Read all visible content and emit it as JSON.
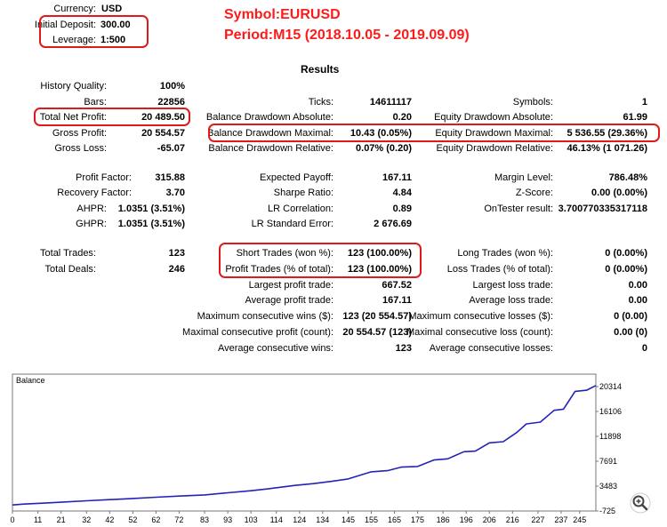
{
  "header": {
    "currency_label": "Currency:",
    "currency_value": "USD",
    "deposit_label": "Initial Deposit:",
    "deposit_value": "300.00",
    "leverage_label": "Leverage:",
    "leverage_value": "1:500",
    "symbol_annotation": "Symbol:EURUSD",
    "period_annotation": "Period:M15 (2018.10.05 - 2019.09.09)",
    "results_title": "Results"
  },
  "stats": {
    "history_quality": {
      "label": "History Quality:",
      "value": "100%"
    },
    "bars": {
      "label": "Bars:",
      "value": "22856"
    },
    "ticks": {
      "label": "Ticks:",
      "value": "14611117"
    },
    "symbols": {
      "label": "Symbols:",
      "value": "1"
    },
    "total_net_profit": {
      "label": "Total Net Profit:",
      "value": "20 489.50"
    },
    "balance_dd_abs": {
      "label": "Balance Drawdown Absolute:",
      "value": "0.20"
    },
    "equity_dd_abs": {
      "label": "Equity Drawdown Absolute:",
      "value": "61.99"
    },
    "gross_profit": {
      "label": "Gross Profit:",
      "value": "20 554.57"
    },
    "balance_dd_max": {
      "label": "Balance Drawdown Maximal:",
      "value": "10.43 (0.05%)"
    },
    "equity_dd_max": {
      "label": "Equity Drawdown Maximal:",
      "value": "5 536.55 (29.36%)"
    },
    "gross_loss": {
      "label": "Gross Loss:",
      "value": "-65.07"
    },
    "balance_dd_rel": {
      "label": "Balance Drawdown Relative:",
      "value": "0.07% (0.20)"
    },
    "equity_dd_rel": {
      "label": "Equity Drawdown Relative:",
      "value": "46.13% (1 071.26)"
    },
    "profit_factor": {
      "label": "Profit Factor:",
      "value": "315.88"
    },
    "expected_payoff": {
      "label": "Expected Payoff:",
      "value": "167.11"
    },
    "margin_level": {
      "label": "Margin Level:",
      "value": "786.48%"
    },
    "recovery_factor": {
      "label": "Recovery Factor:",
      "value": "3.70"
    },
    "sharpe_ratio": {
      "label": "Sharpe Ratio:",
      "value": "4.84"
    },
    "z_score": {
      "label": "Z-Score:",
      "value": "0.00 (0.00%)"
    },
    "ahpr": {
      "label": "AHPR:",
      "value": "1.0351 (3.51%)"
    },
    "lr_correlation": {
      "label": "LR Correlation:",
      "value": "0.89"
    },
    "ontester": {
      "label": "OnTester result:",
      "value": "3.700770335317118"
    },
    "ghpr": {
      "label": "GHPR:",
      "value": "1.0351 (3.51%)"
    },
    "lr_std_error": {
      "label": "LR Standard Error:",
      "value": "2 676.69"
    },
    "total_trades": {
      "label": "Total Trades:",
      "value": "123"
    },
    "short_trades": {
      "label": "Short Trades (won %):",
      "value": "123 (100.00%)"
    },
    "long_trades": {
      "label": "Long Trades (won %):",
      "value": "0 (0.00%)"
    },
    "total_deals": {
      "label": "Total Deals:",
      "value": "246"
    },
    "profit_trades": {
      "label": "Profit Trades (% of total):",
      "value": "123 (100.00%)"
    },
    "loss_trades": {
      "label": "Loss Trades (% of total):",
      "value": "0 (0.00%)"
    },
    "largest_profit": {
      "label": "Largest profit trade:",
      "value": "667.52"
    },
    "largest_loss": {
      "label": "Largest loss trade:",
      "value": "0.00"
    },
    "average_profit": {
      "label": "Average profit trade:",
      "value": "167.11"
    },
    "average_loss": {
      "label": "Average loss trade:",
      "value": "0.00"
    },
    "max_consec_wins": {
      "label": "Maximum consecutive wins ($):",
      "value": "123 (20 554.57)"
    },
    "max_consec_losses": {
      "label": "Maximum consecutive losses ($):",
      "value": "0 (0.00)"
    },
    "maximal_consec_profit": {
      "label": "Maximal consecutive profit (count):",
      "value": "20 554.57 (123)"
    },
    "maximal_consec_loss": {
      "label": "Maximal consecutive loss (count):",
      "value": "0.00 (0)"
    },
    "avg_consec_wins": {
      "label": "Average consecutive wins:",
      "value": "123"
    },
    "avg_consec_losses": {
      "label": "Average consecutive losses:",
      "value": "0"
    }
  },
  "chart_data": {
    "type": "line",
    "title": "Balance",
    "xlabel": "",
    "ylabel": "",
    "line_color": "#2323b8",
    "x_ticks": [
      "0",
      "11",
      "21",
      "32",
      "42",
      "52",
      "62",
      "72",
      "83",
      "93",
      "103",
      "114",
      "124",
      "134",
      "145",
      "155",
      "165",
      "175",
      "186",
      "196",
      "206",
      "216",
      "227",
      "237",
      "245"
    ],
    "y_ticks": [
      "20314",
      "16106",
      "11898",
      "7691",
      "3483",
      "-725"
    ],
    "xlim": [
      0,
      252
    ],
    "ylim": [
      -725,
      22418
    ],
    "series": [
      {
        "name": "Balance",
        "x": [
          0,
          5,
          13,
          22,
          32,
          42,
          52,
          62,
          72,
          83,
          93,
          103,
          110,
          116,
          122,
          130,
          138,
          145,
          150,
          155,
          162,
          168,
          175,
          182,
          188,
          195,
          200,
          206,
          212,
          218,
          222,
          228,
          234,
          238,
          243,
          248,
          252
        ],
        "values": [
          300,
          450,
          600,
          800,
          1000,
          1200,
          1400,
          1600,
          1800,
          2000,
          2350,
          2700,
          3000,
          3300,
          3600,
          3900,
          4300,
          4700,
          5300,
          5900,
          6100,
          6700,
          6800,
          7900,
          8100,
          9300,
          9400,
          10800,
          11000,
          12600,
          14000,
          14300,
          16300,
          16500,
          19500,
          19700,
          20500
        ]
      }
    ]
  },
  "zoom_icon": "zoom-in-icon"
}
